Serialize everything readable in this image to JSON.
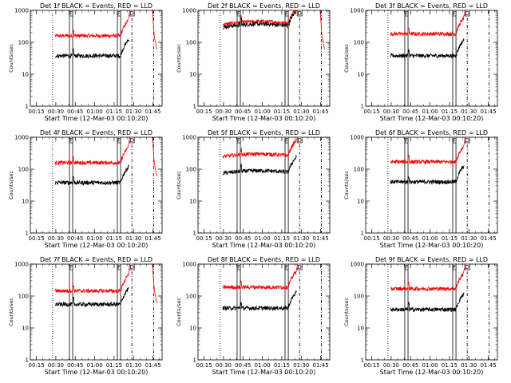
{
  "chart_data": [
    {
      "type": "line",
      "title": "Det 1f BLACK = Events, RED = LLD",
      "xlabel": "Start Time (12-Mar-03 00:10:20)",
      "ylabel": "Counts/sec",
      "black_level": 38,
      "red_level": 160,
      "hump": 0,
      "tail": "down"
    },
    {
      "type": "line",
      "title": "Det 2f BLACK = Events, RED = LLD",
      "xlabel": "Start Time (12-Mar-03 00:10:20)",
      "ylabel": "Counts/sec",
      "black_level": 300,
      "red_level": 360,
      "hump": 0.25,
      "tail": "down"
    },
    {
      "type": "line",
      "title": "Det 3f BLACK = Events, RED = LLD",
      "xlabel": "Start Time (12-Mar-03 00:10:20)",
      "ylabel": "Counts/sec",
      "black_level": 38,
      "red_level": 185,
      "hump": 0,
      "tail": "none"
    },
    {
      "type": "line",
      "title": "Det 4f BLACK = Events, RED = LLD",
      "xlabel": "Start Time (12-Mar-03 00:10:20)",
      "ylabel": "Counts/sec",
      "black_level": 38,
      "red_level": 160,
      "hump": 0,
      "tail": "down"
    },
    {
      "type": "line",
      "title": "Det 5f BLACK = Events, RED = LLD",
      "xlabel": "Start Time (12-Mar-03 00:10:20)",
      "ylabel": "Counts/sec",
      "black_level": 75,
      "red_level": 250,
      "hump": 0.2,
      "tail": "none"
    },
    {
      "type": "line",
      "title": "Det 6f BLACK = Events, RED = LLD",
      "xlabel": "Start Time (12-Mar-03 00:10:20)",
      "ylabel": "Counts/sec",
      "black_level": 40,
      "red_level": 170,
      "hump": 0,
      "tail": "none"
    },
    {
      "type": "line",
      "title": "Det 7f BLACK = Events, RED = LLD",
      "xlabel": "Start Time (12-Mar-03 00:10:20)",
      "ylabel": "Counts/sec",
      "black_level": 55,
      "red_level": 145,
      "hump": 0,
      "tail": "down"
    },
    {
      "type": "line",
      "title": "Det 8f BLACK = Events, RED = LLD",
      "xlabel": "Start Time (12-Mar-03 00:10:20)",
      "ylabel": "Counts/sec",
      "black_level": 42,
      "red_level": 190,
      "hump": 0,
      "tail": "none"
    },
    {
      "type": "line",
      "title": "Det 9f BLACK = Events, RED = LLD",
      "xlabel": "Start Time (12-Mar-03 00:10:20)",
      "ylabel": "Counts/sec",
      "black_level": 38,
      "red_level": 170,
      "hump": 0,
      "tail": "none"
    }
  ],
  "axes": {
    "xticks": [
      "00:15",
      "00:30",
      "00:45",
      "01:00",
      "01:15",
      "01:30",
      "01:45"
    ],
    "xtick_minutes": [
      15,
      30,
      45,
      60,
      75,
      90,
      105
    ],
    "xrange_minutes": [
      10.33,
      112
    ],
    "yticks": [
      "1",
      "10",
      "100",
      "1000"
    ],
    "ytick_values": [
      1,
      10,
      100,
      1000
    ],
    "ylim": [
      1,
      1000
    ],
    "yscale": "log"
  },
  "markers": {
    "dotted_minute": 27.5,
    "box_start_minutes": [
      40.5,
      77.5
    ],
    "box_width_minutes": 2.5,
    "flag_labels": [
      "F",
      "F",
      "D"
    ],
    "dashdot_minutes": [
      88.7,
      105.5
    ],
    "series_start_minute": 29.5,
    "series_end_minute": 86
  },
  "colors": {
    "events": "#000000",
    "lld": "#ff0000"
  }
}
